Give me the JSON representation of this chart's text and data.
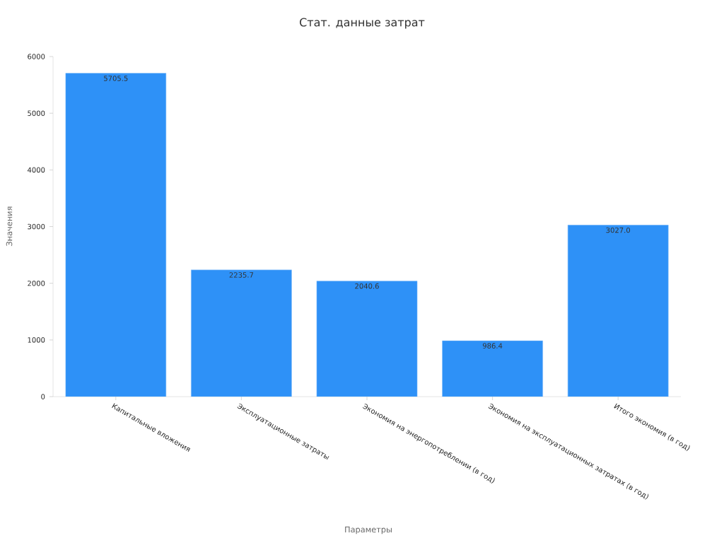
{
  "chart_data": {
    "type": "bar",
    "title": "Стат. данные затрат",
    "xlabel": "Параметры",
    "ylabel": "Значения",
    "categories": [
      "Капитальные вложения",
      "Эксплуатационные затраты",
      "Экономия на энергопотреблении (в год)",
      "Экономия на эксплуатационных затратах (в год)",
      "Итого экономия (в год)"
    ],
    "values": [
      5705.5,
      2235.7,
      2040.6,
      986.4,
      3027.0
    ],
    "color": "#2e91f7",
    "value_labels": [
      "5705.5",
      "2235.7",
      "2040.6",
      "986.4",
      "3027.0"
    ],
    "ylim": [
      0,
      6000
    ],
    "yticks": [
      0,
      1000,
      2000,
      3000,
      4000,
      5000,
      6000
    ]
  }
}
